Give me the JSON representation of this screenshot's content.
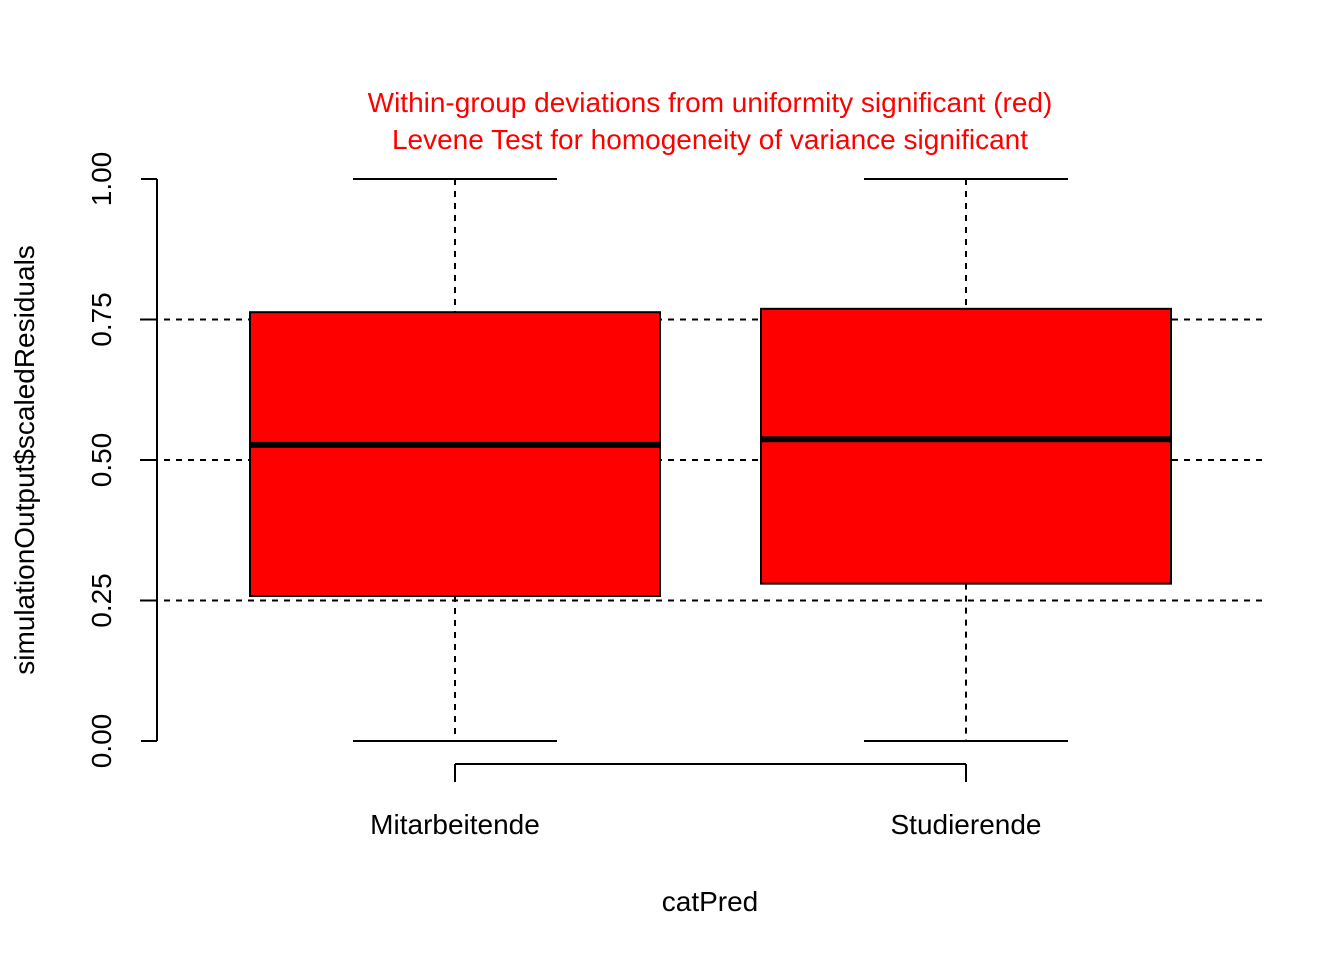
{
  "chart_data": {
    "type": "box",
    "title_lines": [
      "Within-group deviations from uniformity significant (red)",
      "Levene Test for homogeneity of variance significant"
    ],
    "title_color": "#ff0000",
    "xlabel": "catPred",
    "ylabel": "simulationOutput$scaledResiduals",
    "ylim": [
      0,
      1
    ],
    "yticks": [
      0,
      0.25,
      0.5,
      0.75,
      1
    ],
    "ytick_labels": [
      "0.00",
      "0.25",
      "0.50",
      "0.75",
      "1.00"
    ],
    "reference_lines": [
      0.25,
      0.5,
      0.75
    ],
    "box_color": "#ff0000",
    "categories": [
      "Mitarbeitende",
      "Studierende"
    ],
    "boxes": [
      {
        "category": "Mitarbeitende",
        "min": 0.0,
        "q1": 0.258,
        "median": 0.527,
        "q3": 0.763,
        "max": 1.0
      },
      {
        "category": "Studierende",
        "min": 0.0,
        "q1": 0.28,
        "median": 0.537,
        "q3": 0.769,
        "max": 1.0
      }
    ]
  }
}
